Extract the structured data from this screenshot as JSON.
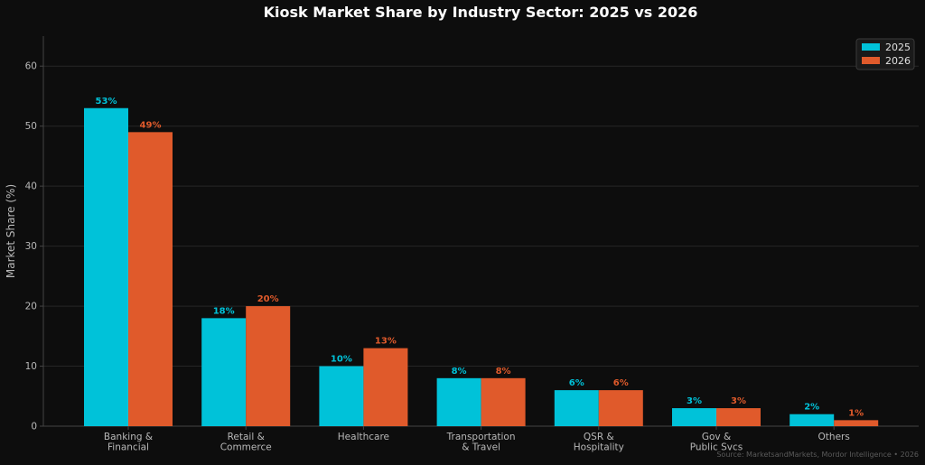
{
  "chart_data": {
    "type": "bar",
    "title": "Kiosk Market Share by Industry Sector: 2025 vs 2026",
    "ylabel": "Market Share (%)",
    "xlabel": "",
    "ylim": [
      0,
      65
    ],
    "yticks": [
      0,
      10,
      20,
      30,
      40,
      50,
      60
    ],
    "grid": true,
    "legend_position": "top-right",
    "categories": [
      [
        "Banking &",
        "Financial"
      ],
      [
        "Retail &",
        "Commerce"
      ],
      [
        "Healthcare"
      ],
      [
        "Transportation",
        "& Travel"
      ],
      [
        "QSR &",
        "Hospitality"
      ],
      [
        "Gov &",
        "Public Svcs"
      ],
      [
        "Others"
      ]
    ],
    "series": [
      {
        "name": "2025",
        "color": "#00c2d9",
        "values": [
          53,
          18,
          10,
          8,
          6,
          3,
          2
        ],
        "labels": [
          "53%",
          "18%",
          "10%",
          "8%",
          "6%",
          "3%",
          "2%"
        ]
      },
      {
        "name": "2026",
        "color": "#e05a2b",
        "values": [
          49,
          20,
          13,
          8,
          6,
          3,
          1
        ],
        "labels": [
          "49%",
          "20%",
          "13%",
          "8%",
          "6%",
          "3%",
          "1%"
        ]
      }
    ],
    "source": "Source: MarketsandMarkets, Mordor Intelligence • 2026"
  },
  "colors": {
    "background": "#0d0d0d",
    "grid": "#262626",
    "axis": "#444444"
  }
}
